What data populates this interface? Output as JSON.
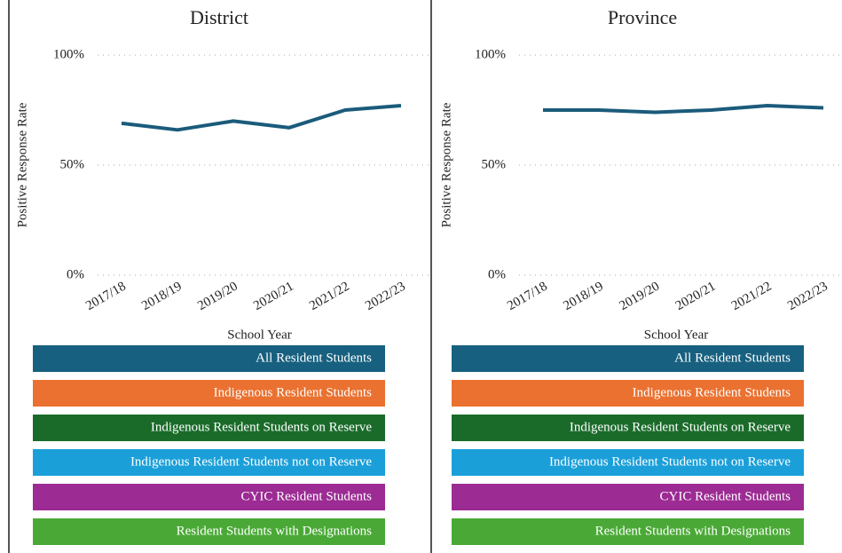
{
  "chart_data": [
    {
      "type": "line",
      "title": "District",
      "y_label": "Positive Response Rate",
      "x_label": "School Year",
      "categories": [
        "2017/18",
        "2018/19",
        "2019/20",
        "2020/21",
        "2021/22",
        "2022/23"
      ],
      "series": [
        {
          "name": "All Resident Students",
          "color": "#1b5b7b",
          "values": [
            69,
            66,
            70,
            67,
            75,
            77
          ]
        }
      ],
      "ylim": [
        0,
        100
      ],
      "yticks": [
        {
          "value": 0,
          "label": "0%"
        },
        {
          "value": 50,
          "label": "50%"
        },
        {
          "value": 100,
          "label": "100%"
        }
      ],
      "grid": true,
      "legend": [
        {
          "name": "All Resident Students",
          "color": "#17607f"
        },
        {
          "name": "Indigenous Resident Students",
          "color": "#ea7130"
        },
        {
          "name": "Indigenous Resident Students on Reserve",
          "color": "#1a6b2a"
        },
        {
          "name": "Indigenous Resident Students not on Reserve",
          "color": "#1a9fd9"
        },
        {
          "name": "CYIC Resident Students",
          "color": "#9c2b93"
        },
        {
          "name": "Resident Students with Designations",
          "color": "#4aa936"
        }
      ]
    },
    {
      "type": "line",
      "title": "Province",
      "y_label": "Positive Response Rate",
      "x_label": "School Year",
      "categories": [
        "2017/18",
        "2018/19",
        "2019/20",
        "2020/21",
        "2021/22",
        "2022/23"
      ],
      "series": [
        {
          "name": "All Resident Students",
          "color": "#1b5b7b",
          "values": [
            75,
            75,
            74,
            75,
            77,
            76
          ]
        }
      ],
      "ylim": [
        0,
        100
      ],
      "yticks": [
        {
          "value": 0,
          "label": "0%"
        },
        {
          "value": 50,
          "label": "50%"
        },
        {
          "value": 100,
          "label": "100%"
        }
      ],
      "grid": true,
      "legend": [
        {
          "name": "All Resident Students",
          "color": "#17607f"
        },
        {
          "name": "Indigenous Resident Students",
          "color": "#ea7130"
        },
        {
          "name": "Indigenous Resident Students on Reserve",
          "color": "#1a6b2a"
        },
        {
          "name": "Indigenous Resident Students not on Reserve",
          "color": "#1a9fd9"
        },
        {
          "name": "CYIC Resident Students",
          "color": "#9c2b93"
        },
        {
          "name": "Resident Students with Designations",
          "color": "#4aa936"
        }
      ]
    }
  ]
}
